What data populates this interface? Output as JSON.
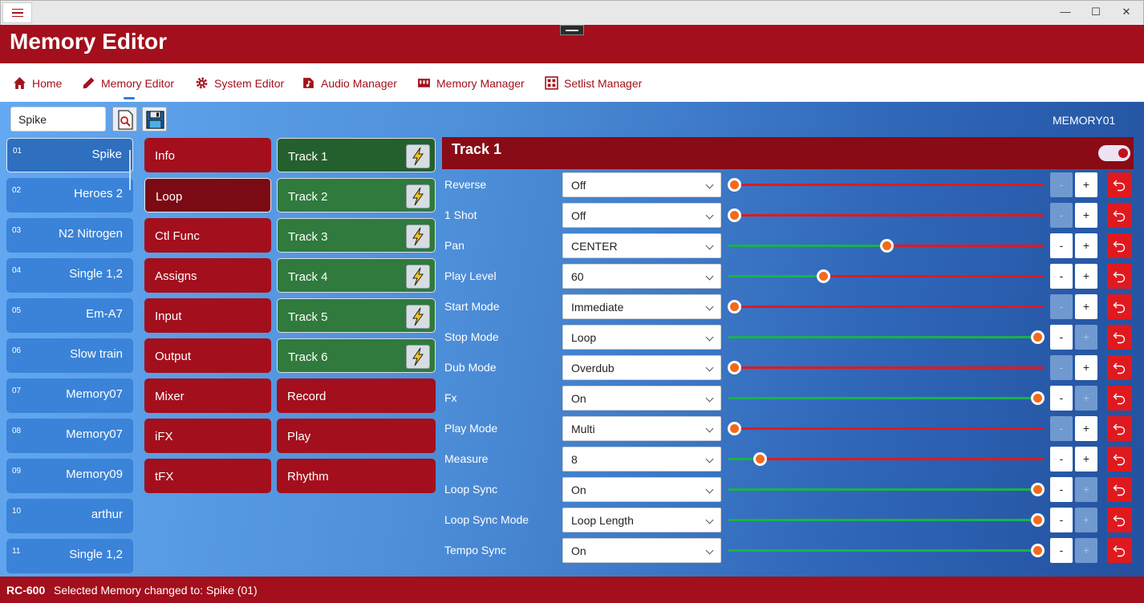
{
  "window": {
    "minimize": "—",
    "maximize": "☐",
    "close": "✕"
  },
  "header": {
    "title": "Memory Editor"
  },
  "nav": {
    "items": [
      {
        "label": "Home",
        "icon": "home-icon"
      },
      {
        "label": "Memory Editor",
        "icon": "pencil-icon"
      },
      {
        "label": "System Editor",
        "icon": "gear-icon"
      },
      {
        "label": "Audio Manager",
        "icon": "music-file-icon"
      },
      {
        "label": "Memory Manager",
        "icon": "memory-icon"
      },
      {
        "label": "Setlist Manager",
        "icon": "setlist-icon"
      }
    ],
    "active": "Memory Editor"
  },
  "toolbar": {
    "search_value": "Spike",
    "memory_id": "MEMORY01"
  },
  "memories": [
    {
      "num": "01",
      "name": "Spike"
    },
    {
      "num": "02",
      "name": "Heroes 2"
    },
    {
      "num": "03",
      "name": "N2 Nitrogen"
    },
    {
      "num": "04",
      "name": "Single 1,2"
    },
    {
      "num": "05",
      "name": "Em-A7"
    },
    {
      "num": "06",
      "name": "Slow train"
    },
    {
      "num": "07",
      "name": "Memory07"
    },
    {
      "num": "08",
      "name": "Memory07"
    },
    {
      "num": "09",
      "name": "Memory09"
    },
    {
      "num": "10",
      "name": "arthur"
    },
    {
      "num": "11",
      "name": "Single 1,2"
    }
  ],
  "categories": [
    "Info",
    "Loop",
    "Ctl Func",
    "Assigns",
    "Input",
    "Output",
    "Mixer",
    "iFX",
    "tFX"
  ],
  "tracks": [
    "Track 1",
    "Track 2",
    "Track 3",
    "Track 4",
    "Track 5",
    "Track 6"
  ],
  "extra_sections": [
    "Record",
    "Play",
    "Rhythm"
  ],
  "panel": {
    "title": "Track 1",
    "enabled": true,
    "params": [
      {
        "label": "Reverse",
        "value": "Off",
        "fraction": 0.0,
        "fill": false,
        "minus_enabled": false,
        "plus_enabled": true
      },
      {
        "label": "1 Shot",
        "value": "Off",
        "fraction": 0.0,
        "fill": false,
        "minus_enabled": false,
        "plus_enabled": true
      },
      {
        "label": "Pan",
        "value": "CENTER",
        "fraction": 0.5,
        "fill": true,
        "minus_enabled": true,
        "plus_enabled": true
      },
      {
        "label": "Play Level",
        "value": "60",
        "fraction": 0.3,
        "fill": true,
        "minus_enabled": true,
        "plus_enabled": true
      },
      {
        "label": "Start Mode",
        "value": "Immediate",
        "fraction": 0.0,
        "fill": false,
        "minus_enabled": false,
        "plus_enabled": true
      },
      {
        "label": "Stop Mode",
        "value": "Loop",
        "fraction": 1.0,
        "fill": true,
        "minus_enabled": true,
        "plus_enabled": false
      },
      {
        "label": "Dub Mode",
        "value": "Overdub",
        "fraction": 0.0,
        "fill": false,
        "minus_enabled": false,
        "plus_enabled": true
      },
      {
        "label": "Fx",
        "value": "On",
        "fraction": 1.0,
        "fill": true,
        "minus_enabled": true,
        "plus_enabled": false
      },
      {
        "label": "Play Mode",
        "value": "Multi",
        "fraction": 0.0,
        "fill": false,
        "minus_enabled": false,
        "plus_enabled": true
      },
      {
        "label": "Measure",
        "value": "8",
        "fraction": 0.1,
        "fill": true,
        "minus_enabled": true,
        "plus_enabled": true
      },
      {
        "label": "Loop Sync",
        "value": "On",
        "fraction": 1.0,
        "fill": true,
        "minus_enabled": true,
        "plus_enabled": false
      },
      {
        "label": "Loop Sync Mode",
        "value": "Loop Length",
        "fraction": 1.0,
        "fill": true,
        "minus_enabled": true,
        "plus_enabled": false
      },
      {
        "label": "Tempo Sync",
        "value": "On",
        "fraction": 1.0,
        "fill": true,
        "minus_enabled": true,
        "plus_enabled": false
      }
    ],
    "minus_label": "-",
    "plus_label": "+"
  },
  "status": {
    "app": "RC-600",
    "message": "Selected Memory changed to: Spike (01)"
  },
  "colors": {
    "brand_red": "#a30f1c",
    "track_green": "#2f7a3c",
    "slider_off": "#e0191f",
    "slider_on": "#19b24a",
    "thumb": "#f26a1b"
  }
}
